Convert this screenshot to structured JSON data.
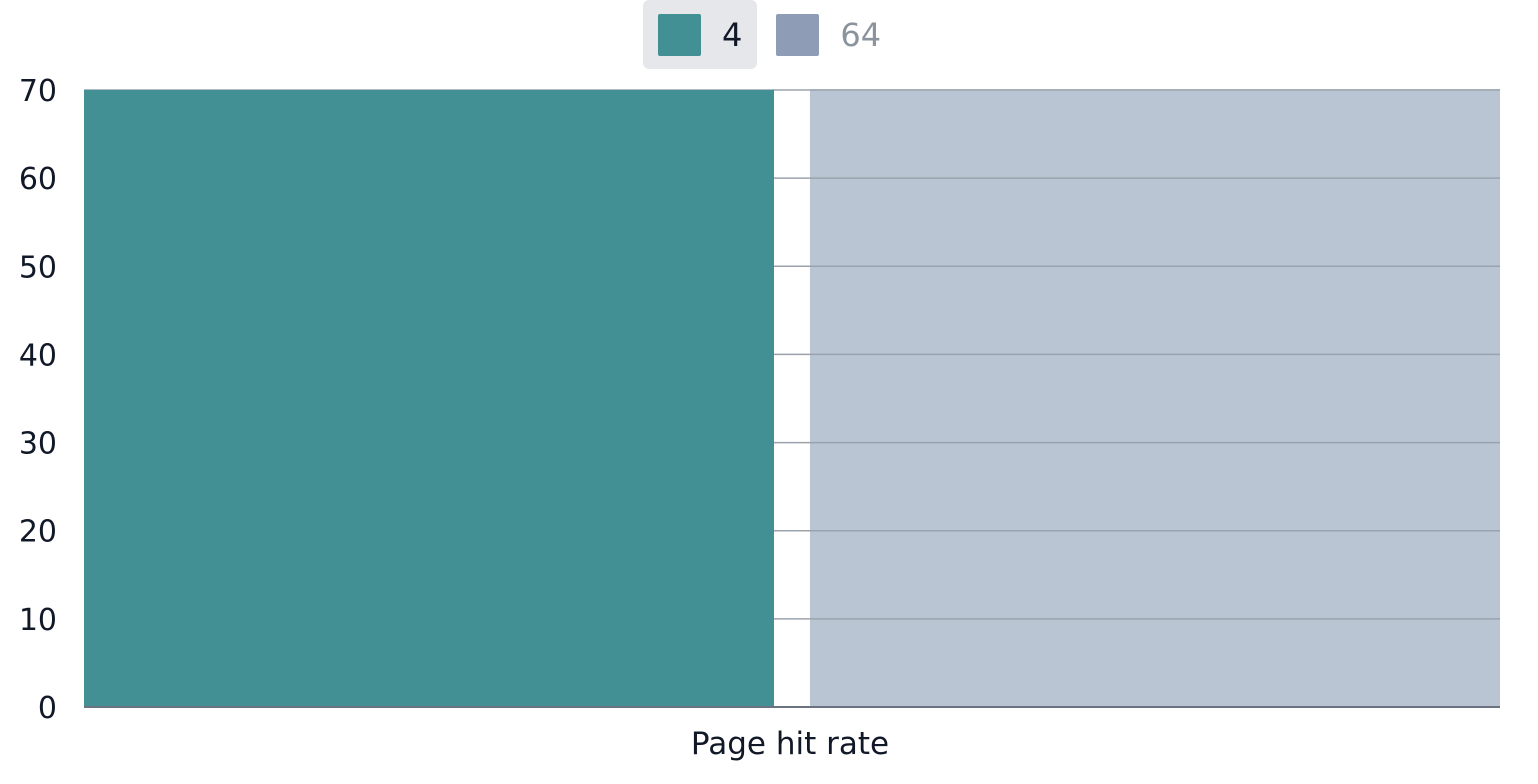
{
  "chart_data": {
    "type": "bar",
    "categories": [
      "Page hit rate"
    ],
    "series": [
      {
        "name": "4",
        "values": [
          70
        ],
        "color": "#428f94",
        "active": true
      },
      {
        "name": "64",
        "values": [
          70
        ],
        "color": "#8e9db5",
        "active": false
      }
    ],
    "xlabel": "Page hit rate",
    "ylabel": "",
    "ylim": [
      0,
      70
    ],
    "yticks": [
      "0",
      "10",
      "20",
      "30",
      "40",
      "50",
      "60",
      "70"
    ],
    "grid": true,
    "legend_position": "top-center"
  },
  "colors": {
    "text": "#111827",
    "inactive_text": "#8b939d",
    "legend_active_bg": "#e5e7eb",
    "grid": "#9aa3ad",
    "axis": "#6b7280",
    "inactive_fill": "#bac5d3"
  }
}
